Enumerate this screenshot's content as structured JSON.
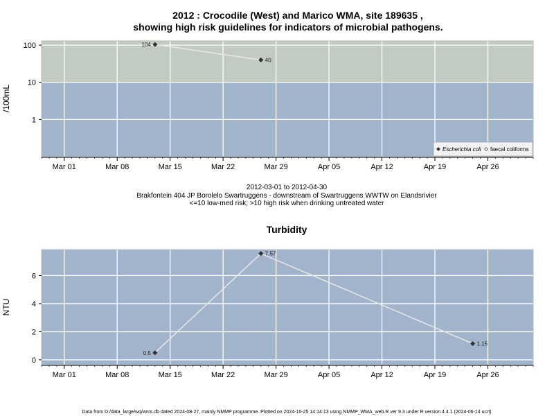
{
  "title_line1": "2012 : Crocodile (West) and Marico WMA, site 189635 ,",
  "title_line2": "showing high risk guidelines for indicators of microbial pathogens.",
  "date_range": "2012-03-01 to 2012-04-30",
  "site_description": "Brakfontein 404 JP Borolelo Swartruggens - downstream of Swartruggens WWTW on Elandsrivier",
  "risk_note": "<=10 low-med risk; >10 high risk when drinking untreated water",
  "footer": "Data from D:/data_large/wq/wms.db dated 2024-08-27, mainly NMMP programme. Plotted on 2024-10-25 14:14:13 using NMMP_WMA_web.R ver 9.3 under R version 4.4.1 (2024-06-14 ucrt)",
  "colors": {
    "panel_low": "#a2b3cc",
    "panel_high": "#c2cbc2",
    "grid": "#ffffff",
    "line": "#e6e6e6",
    "point": "#333333"
  },
  "chart_data": [
    {
      "type": "line",
      "title": "",
      "xlabel": "",
      "ylabel": "/100mL",
      "yscale": "log",
      "x_tick_labels": [
        "Mar 01",
        "Mar 08",
        "Mar 15",
        "Mar 22",
        "Mar 29",
        "Apr 05",
        "Apr 12",
        "Apr 19",
        "Apr 26"
      ],
      "x_ticks": [
        "2012-03-01",
        "2012-03-08",
        "2012-03-15",
        "2012-03-22",
        "2012-03-29",
        "2012-04-05",
        "2012-04-12",
        "2012-04-19",
        "2012-04-26"
      ],
      "xlim": [
        "2012-02-27",
        "2012-05-02"
      ],
      "y_ticks": [
        1,
        10,
        100
      ],
      "y_tick_labels": [
        "1",
        "10",
        "100"
      ],
      "ylim": [
        0.1,
        130
      ],
      "threshold": 10,
      "grid": true,
      "legend": {
        "position": "bottom-right",
        "entries": [
          {
            "label": "Escherichia coli",
            "marker": "filled-diamond",
            "italic": true
          },
          {
            "label": "faecal coliforms",
            "marker": "open-diamond",
            "italic": false
          }
        ]
      },
      "series": [
        {
          "name": "Escherichia coli",
          "x": [
            "2012-03-13",
            "2012-03-27"
          ],
          "y": [
            104,
            40
          ],
          "labels": [
            "104",
            "40"
          ]
        }
      ]
    },
    {
      "type": "line",
      "title": "Turbidity",
      "xlabel": "",
      "ylabel": "NTU",
      "yscale": "linear",
      "x_tick_labels": [
        "Mar 01",
        "Mar 08",
        "Mar 15",
        "Mar 22",
        "Mar 29",
        "Apr 05",
        "Apr 12",
        "Apr 19",
        "Apr 26"
      ],
      "x_ticks": [
        "2012-03-01",
        "2012-03-08",
        "2012-03-15",
        "2012-03-22",
        "2012-03-29",
        "2012-04-05",
        "2012-04-12",
        "2012-04-19",
        "2012-04-26"
      ],
      "xlim": [
        "2012-02-27",
        "2012-05-02"
      ],
      "y_ticks": [
        0,
        2,
        4,
        6
      ],
      "y_tick_labels": [
        "0",
        "2",
        "4",
        "6"
      ],
      "ylim": [
        -0.35,
        7.85
      ],
      "grid": true,
      "series": [
        {
          "name": "",
          "x": [
            "2012-03-13",
            "2012-03-27",
            "2012-04-24"
          ],
          "y": [
            0.5,
            7.57,
            1.15
          ],
          "labels": [
            "0.5",
            "7.57",
            "1.15"
          ]
        }
      ]
    }
  ]
}
